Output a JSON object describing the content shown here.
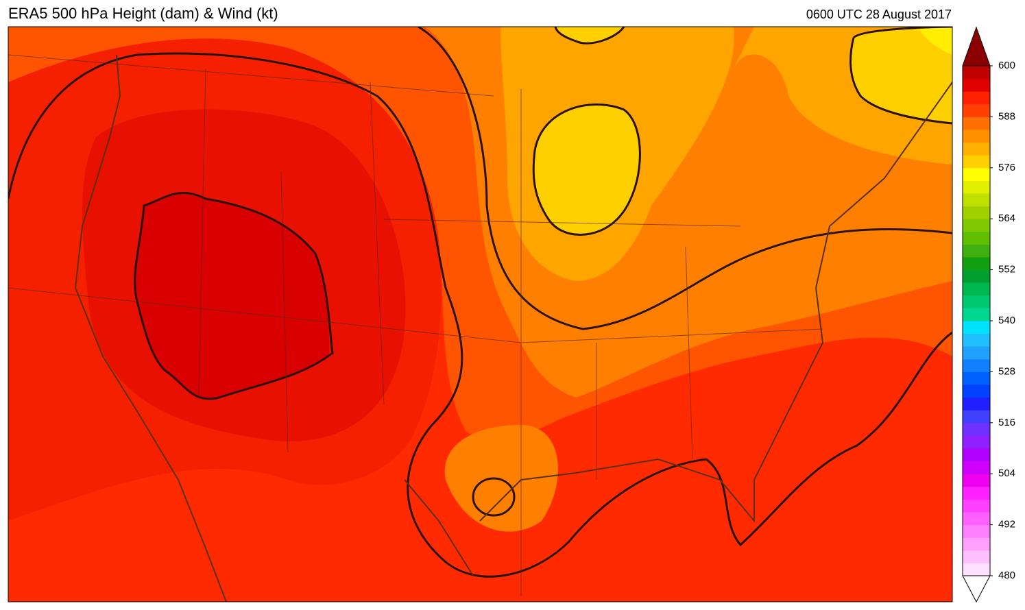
{
  "header": {
    "title": "ERA5 500 hPa Height (dam) & Wind (kt)",
    "time": "0600 UTC 28 August 2017"
  },
  "colorbar": {
    "lim": [
      480,
      600
    ],
    "ticks": [
      480,
      492,
      504,
      516,
      528,
      540,
      552,
      564,
      576,
      588,
      600
    ],
    "colors": [
      "#ffe0ff",
      "#ffc0ff",
      "#ffa0ff",
      "#ff80ff",
      "#ff60ff",
      "#ff40ff",
      "#ff20ff",
      "#ee00ee",
      "#d000ff",
      "#b000ff",
      "#9020ff",
      "#7030ff",
      "#4040ff",
      "#2020ff",
      "#0040ff",
      "#0060ff",
      "#1080ff",
      "#20a0ff",
      "#20c0ff",
      "#00e0ff",
      "#00d890",
      "#00c870",
      "#00b850",
      "#00a030",
      "#10a010",
      "#40b010",
      "#60c000",
      "#80c800",
      "#a0d000",
      "#c0e000",
      "#e0f000",
      "#ffff00",
      "#ffd000",
      "#ffb000",
      "#ff9000",
      "#ff7000",
      "#ff4000",
      "#ff2000",
      "#e00000",
      "#c00000"
    ]
  }
}
